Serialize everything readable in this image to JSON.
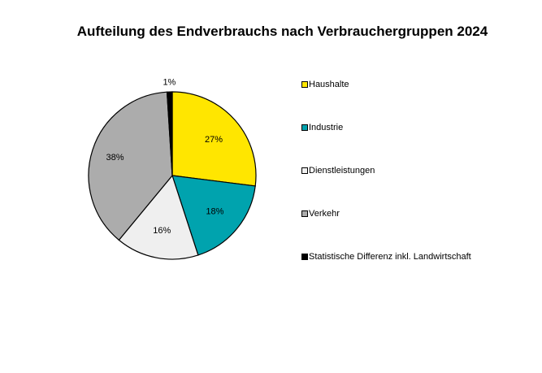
{
  "chart_data": {
    "type": "pie",
    "title": "Aufteilung des Endverbrauchs nach Verbrauchergruppen 2024",
    "slices": [
      {
        "name": "Haushalte",
        "value": 27,
        "label": "27%",
        "color": "#FFE600"
      },
      {
        "name": "Industrie",
        "value": 18,
        "label": "18%",
        "color": "#00A3AE"
      },
      {
        "name": "Dienstleistungen",
        "value": 16,
        "label": "16%",
        "color": "#EFEFEF"
      },
      {
        "name": "Verkehr",
        "value": 38,
        "label": "38%",
        "color": "#ACACAC"
      },
      {
        "name": "Statistische Differenz inkl. Landwirtschaft",
        "value": 1,
        "label": "1%",
        "color": "#000000"
      }
    ],
    "legend_position": "right",
    "start_angle": "12 o'clock",
    "direction": "clockwise"
  }
}
